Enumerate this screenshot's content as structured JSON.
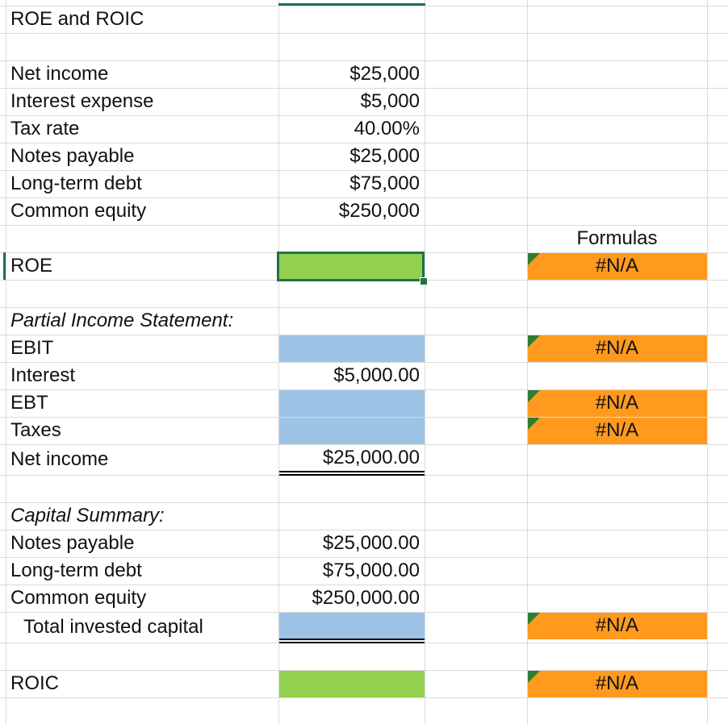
{
  "sheet": {
    "title": "ROE and ROIC",
    "inputs": [
      {
        "label": "Net income",
        "value": "$25,000"
      },
      {
        "label": "Interest expense",
        "value": "$5,000"
      },
      {
        "label": "Tax rate",
        "value": "40.00%"
      },
      {
        "label": "Notes payable",
        "value": "$25,000"
      },
      {
        "label": "Long-term debt",
        "value": "$75,000"
      },
      {
        "label": "Common equity",
        "value": "$250,000"
      }
    ],
    "formulas_header": "Formulas",
    "roe": {
      "label": "ROE",
      "formula": "#N/A"
    },
    "income_statement": {
      "header": "Partial Income Statement:",
      "ebit": {
        "label": "EBIT",
        "formula": "#N/A"
      },
      "interest": {
        "label": "Interest",
        "value": "$5,000.00"
      },
      "ebt": {
        "label": "EBT",
        "formula": "#N/A"
      },
      "taxes": {
        "label": "Taxes",
        "formula": "#N/A"
      },
      "net_income": {
        "label": "Net income",
        "value": "$25,000.00"
      }
    },
    "capital_summary": {
      "header": "Capital Summary:",
      "notes_payable": {
        "label": "Notes payable",
        "value": "$25,000.00"
      },
      "long_term_debt": {
        "label": "Long-term debt",
        "value": "$75,000.00"
      },
      "common_equity": {
        "label": "Common equity",
        "value": "$250,000.00"
      },
      "total": {
        "label": "Total invested capital",
        "formula": "#N/A"
      }
    },
    "roic": {
      "label": "ROIC",
      "formula": "#N/A"
    },
    "colors": {
      "green_cell": "#92d050",
      "blue_cell": "#9dc3e6",
      "orange_cell": "#ff9a1f",
      "selection": "#1f7244",
      "gridline": "#dadada"
    }
  }
}
